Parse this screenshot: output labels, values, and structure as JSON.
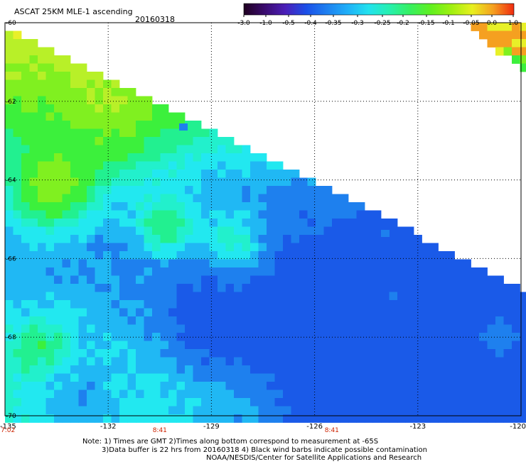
{
  "header": {
    "title": "ASCAT 25KM MLE-1 ascending",
    "date": "20160318"
  },
  "colorbar": {
    "tick_labels": [
      "-3.0",
      "-1.0",
      "-0.5",
      "-0.4",
      "-0.35",
      "-0.3",
      "-0.25",
      "-0.2",
      "-0.15",
      "-0.1",
      "-0.05",
      "0.0",
      "1.0"
    ],
    "colors": [
      "#200020",
      "#3a0b6e",
      "#4b1fb8",
      "#1b4fe8",
      "#1e80f0",
      "#1fb0f8",
      "#22e2ee",
      "#26f0b0",
      "#36f060",
      "#60f020",
      "#a0f010",
      "#e8f020",
      "#f5a020",
      "#f02a10"
    ]
  },
  "map_colors": {
    "orange": "#f5a020",
    "yellow": "#e8f028",
    "yellow_green": "#b8f028",
    "light_green": "#80f020",
    "green": "#3cf03c",
    "teal_green": "#22f090",
    "aqua": "#22f0cc",
    "cyan": "#22e8f0",
    "light_blue": "#20b8f4",
    "blue": "#1e80ee",
    "deep_blue": "#1a5ae8",
    "axis_label_red": "#cc2200"
  },
  "chart_data": {
    "type": "heatmap",
    "title": "ASCAT 25KM MLE-1 ascending",
    "x_axis": {
      "tick_labels": [
        "-135",
        "-132",
        "-129",
        "-126",
        "-123",
        "-120"
      ],
      "range": [
        -135,
        -120
      ]
    },
    "y_axis": {
      "tick_labels": [
        "-60",
        "-62",
        "-64",
        "-66",
        "-68",
        "-70"
      ],
      "range": [
        -70,
        -60
      ]
    },
    "grid": true,
    "time_labels": [
      {
        "x": -135,
        "label": "7:02"
      },
      {
        "x": -130.5,
        "label": "8:41"
      },
      {
        "x": -125.5,
        "label": "8:41"
      }
    ],
    "value_scale": [
      "-3.0",
      "-1.0",
      "-0.5",
      "-0.4",
      "-0.35",
      "-0.3",
      "-0.25",
      "-0.2",
      "-0.15",
      "-0.1",
      "-0.05",
      "0.0",
      "1.0"
    ]
  },
  "notes": {
    "line1": "Note: 1) Times are GMT 2)Times along bottom correspond to measurement at -65S",
    "line2": "3)Data buffer is 22 hrs from 20160318 4) Black wind barbs indicate possible contamination",
    "line3": "NOAA/NESDIS/Center for Satellite Applications and Research"
  }
}
